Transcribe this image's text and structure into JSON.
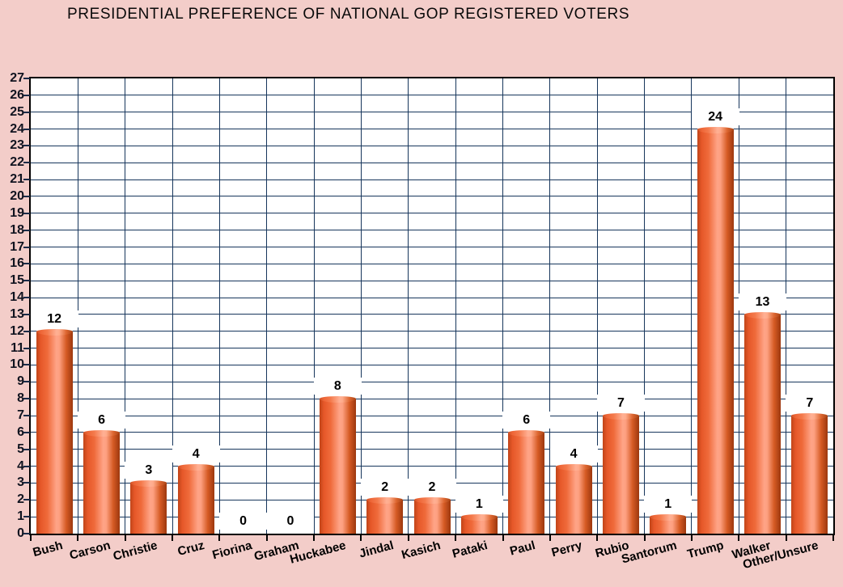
{
  "chart_data": {
    "type": "bar",
    "title": "PRESIDENTIAL PREFERENCE OF NATIONAL GOP REGISTERED VOTERS",
    "categories": [
      "Bush",
      "Carson",
      "Christie",
      "Cruz",
      "Fiorina",
      "Graham",
      "Huckabee",
      "Jindal",
      "Kasich",
      "Pataki",
      "Paul",
      "Perry",
      "Rubio",
      "Santorum",
      "Trump",
      "Walker",
      "Other/Unsure"
    ],
    "values": [
      12,
      6,
      3,
      4,
      0,
      0,
      8,
      2,
      2,
      1,
      6,
      4,
      7,
      1,
      24,
      13,
      7
    ],
    "xlabel": "",
    "ylabel": "",
    "ylim": [
      0,
      27
    ],
    "ytick_step": 1,
    "grid": true,
    "legend": "none",
    "bar_value_labels_shown": true,
    "colors": {
      "page_background": "#f3cdc9",
      "plot_background": "#ffffff",
      "grid": "#17365c",
      "plot_border": "#000000",
      "bar_dark_edge": "#9c380e",
      "bar_body": "#e65829",
      "bar_highlight": "#ffa487",
      "bar_cap_rim": "#ffffff",
      "value_label_text": "#000000",
      "value_label_background": "#ffffff",
      "axis_text": "#10131f"
    }
  }
}
